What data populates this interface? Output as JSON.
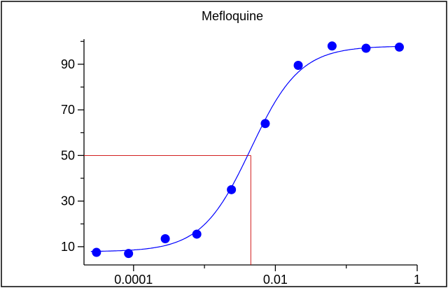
{
  "chart_data": {
    "type": "scatter",
    "title": "Mefloquine",
    "xlabel": "",
    "ylabel": "",
    "x_scale": "log",
    "xlim": [
      2e-05,
      1
    ],
    "ylim": [
      2,
      101
    ],
    "x_ticks": [
      {
        "value": 0.0001,
        "label": "0.0001"
      },
      {
        "value": 0.01,
        "label": "0.01"
      },
      {
        "value": 1,
        "label": "1"
      }
    ],
    "x_minor_ticks": [
      0.001,
      0.1
    ],
    "y_ticks": [
      {
        "value": 10,
        "label": "10"
      },
      {
        "value": 30,
        "label": "30"
      },
      {
        "value": 50,
        "label": "50"
      },
      {
        "value": 70,
        "label": "70"
      },
      {
        "value": 90,
        "label": "90"
      }
    ],
    "y_minor_ticks": [
      20,
      40,
      60,
      80,
      100
    ],
    "grid": false,
    "legend": "none",
    "series": [
      {
        "color": "#0000ff",
        "x": [
          3e-05,
          8.5e-05,
          0.00028,
          0.00078,
          0.0024,
          0.0072,
          0.021,
          0.063,
          0.19,
          0.56
        ],
        "y": [
          7.5,
          7,
          13.5,
          15.5,
          35,
          64,
          89.5,
          98,
          97,
          97.5
        ]
      }
    ],
    "fit_curve": {
      "color": "#0000ff",
      "model": "4-parameter logistic",
      "bottom": 7.8,
      "top": 98,
      "ec50": 0.0045,
      "hill": 1.25
    },
    "ec50_marker": {
      "color": "#cc0000",
      "x": 0.0045,
      "y": 50
    }
  }
}
